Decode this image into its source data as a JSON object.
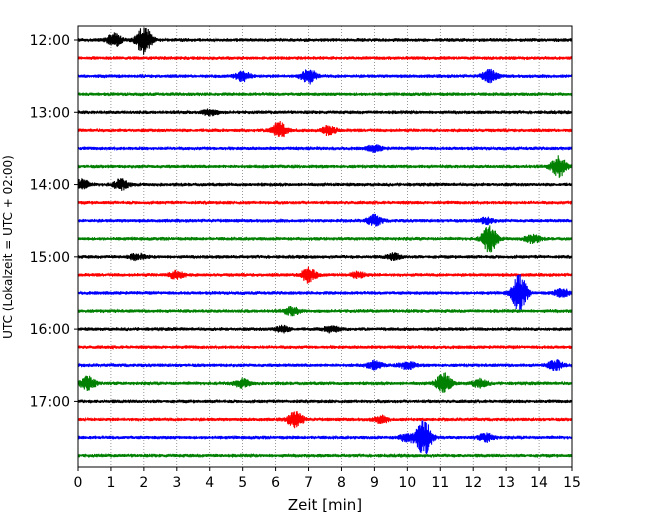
{
  "chart_data": {
    "type": "line",
    "title": "",
    "xlabel": "Zeit  [min]",
    "ylabel": "UTC (Lokalzeit = UTC + 02:00)",
    "xlim": [
      0,
      15
    ],
    "x_ticks": [
      "0",
      "1",
      "2",
      "3",
      "4",
      "5",
      "6",
      "7",
      "8",
      "9",
      "10",
      "11",
      "12",
      "13",
      "14",
      "15"
    ],
    "y_ticks": [
      "12:00",
      "13:00",
      "14:00",
      "15:00",
      "16:00",
      "17:00"
    ],
    "vertical_grid": true,
    "grid_style": "dotted",
    "color_cycle": [
      "#000000",
      "#ff0000",
      "#0000ff",
      "#008000"
    ],
    "traces": [
      {
        "time": "12:00",
        "color": "#000000",
        "events": [
          {
            "minute": 1.1,
            "amp": 6
          },
          {
            "minute": 2.0,
            "amp": 14
          }
        ]
      },
      {
        "time": "12:15",
        "color": "#ff0000",
        "events": []
      },
      {
        "time": "12:30",
        "color": "#0000ff",
        "events": [
          {
            "minute": 5.0,
            "amp": 5
          },
          {
            "minute": 7.0,
            "amp": 7
          },
          {
            "minute": 12.5,
            "amp": 6
          }
        ]
      },
      {
        "time": "12:45",
        "color": "#008000",
        "events": []
      },
      {
        "time": "13:00",
        "color": "#000000",
        "events": [
          {
            "minute": 4.0,
            "amp": 3
          }
        ]
      },
      {
        "time": "13:15",
        "color": "#ff0000",
        "events": [
          {
            "minute": 6.1,
            "amp": 8
          },
          {
            "minute": 7.6,
            "amp": 4
          }
        ]
      },
      {
        "time": "13:30",
        "color": "#0000ff",
        "events": [
          {
            "minute": 9.0,
            "amp": 3
          }
        ]
      },
      {
        "time": "13:45",
        "color": "#008000",
        "events": [
          {
            "minute": 14.6,
            "amp": 10
          }
        ]
      },
      {
        "time": "14:00",
        "color": "#000000",
        "events": [
          {
            "minute": 0.1,
            "amp": 5
          },
          {
            "minute": 1.3,
            "amp": 5
          }
        ]
      },
      {
        "time": "14:15",
        "color": "#ff0000",
        "events": []
      },
      {
        "time": "14:30",
        "color": "#0000ff",
        "events": [
          {
            "minute": 9.0,
            "amp": 5
          },
          {
            "minute": 12.4,
            "amp": 3
          }
        ]
      },
      {
        "time": "14:45",
        "color": "#008000",
        "events": [
          {
            "minute": 12.5,
            "amp": 13
          },
          {
            "minute": 13.8,
            "amp": 4
          }
        ]
      },
      {
        "time": "15:00",
        "color": "#000000",
        "events": [
          {
            "minute": 1.8,
            "amp": 3
          },
          {
            "minute": 9.6,
            "amp": 3
          }
        ]
      },
      {
        "time": "15:15",
        "color": "#ff0000",
        "events": [
          {
            "minute": 3.0,
            "amp": 4
          },
          {
            "minute": 7.0,
            "amp": 7
          },
          {
            "minute": 8.5,
            "amp": 3
          }
        ]
      },
      {
        "time": "15:30",
        "color": "#0000ff",
        "events": [
          {
            "minute": 13.4,
            "amp": 18
          },
          {
            "minute": 14.7,
            "amp": 4
          }
        ]
      },
      {
        "time": "15:45",
        "color": "#008000",
        "events": [
          {
            "minute": 6.5,
            "amp": 4
          }
        ]
      },
      {
        "time": "16:00",
        "color": "#000000",
        "events": [
          {
            "minute": 6.2,
            "amp": 3
          },
          {
            "minute": 7.7,
            "amp": 3
          }
        ]
      },
      {
        "time": "16:15",
        "color": "#ff0000",
        "events": []
      },
      {
        "time": "16:30",
        "color": "#0000ff",
        "events": [
          {
            "minute": 9.0,
            "amp": 4
          },
          {
            "minute": 10.0,
            "amp": 4
          },
          {
            "minute": 14.5,
            "amp": 5
          }
        ]
      },
      {
        "time": "16:45",
        "color": "#008000",
        "events": [
          {
            "minute": 0.3,
            "amp": 7
          },
          {
            "minute": 5.0,
            "amp": 4
          },
          {
            "minute": 11.1,
            "amp": 10
          },
          {
            "minute": 12.2,
            "amp": 4
          }
        ]
      },
      {
        "time": "17:00",
        "color": "#000000",
        "events": []
      },
      {
        "time": "17:15",
        "color": "#ff0000",
        "events": [
          {
            "minute": 6.6,
            "amp": 8
          },
          {
            "minute": 9.2,
            "amp": 3
          }
        ]
      },
      {
        "time": "17:30",
        "color": "#0000ff",
        "events": [
          {
            "minute": 10.0,
            "amp": 4
          },
          {
            "minute": 10.5,
            "amp": 18
          },
          {
            "minute": 12.4,
            "amp": 4
          }
        ]
      },
      {
        "time": "17:45",
        "color": "#008000",
        "events": []
      }
    ]
  }
}
